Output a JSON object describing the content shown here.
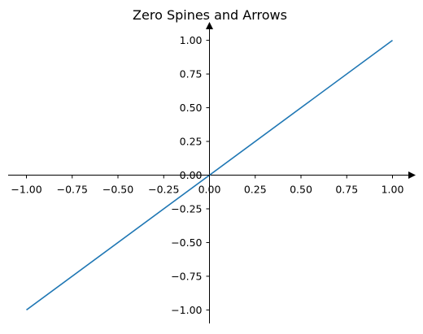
{
  "chart_data": {
    "type": "line",
    "title": "Zero Spines and Arrows",
    "xlabel": "",
    "ylabel": "",
    "xlim": [
      -1.1,
      1.1
    ],
    "ylim": [
      -1.1,
      1.1
    ],
    "grid": false,
    "spines": "zero-centered with arrowheads",
    "x_ticks": [
      {
        "value": -1.0,
        "label": "−1.00"
      },
      {
        "value": -0.75,
        "label": "−0.75"
      },
      {
        "value": -0.5,
        "label": "−0.50"
      },
      {
        "value": -0.25,
        "label": "−0.25"
      },
      {
        "value": 0.0,
        "label": "0.00"
      },
      {
        "value": 0.25,
        "label": "0.25"
      },
      {
        "value": 0.5,
        "label": "0.50"
      },
      {
        "value": 0.75,
        "label": "0.75"
      },
      {
        "value": 1.0,
        "label": "1.00"
      }
    ],
    "y_ticks": [
      {
        "value": 1.0,
        "label": "1.00"
      },
      {
        "value": 0.75,
        "label": "0.75"
      },
      {
        "value": 0.5,
        "label": "0.50"
      },
      {
        "value": 0.25,
        "label": "0.25"
      },
      {
        "value": 0.0,
        "label": "0.00"
      },
      {
        "value": -0.25,
        "label": "−0.25"
      },
      {
        "value": -0.5,
        "label": "−0.50"
      },
      {
        "value": -0.75,
        "label": "−0.75"
      },
      {
        "value": -1.0,
        "label": "−1.00"
      }
    ],
    "series": [
      {
        "color": "#1f77b4",
        "x": [
          -1.0,
          1.0
        ],
        "y": [
          -1.0,
          1.0
        ]
      }
    ],
    "axis_color": "#000000"
  }
}
